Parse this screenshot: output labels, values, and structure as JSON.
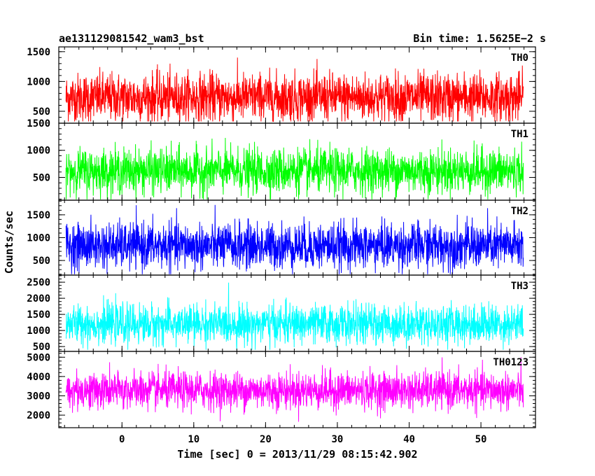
{
  "header": {
    "left_title": "ae131129081542_wam3_bst",
    "right_title": "Bin time: 1.5625E−2 s"
  },
  "chart_data": {
    "type": "line",
    "title": "ae131129081542_wam3_bst",
    "bin_time": "Bin time: 1.5625E−2 s",
    "xlabel": "Time [sec] 0 = 2013/11/29 08:15:42.902",
    "ylabel": "Counts/sec",
    "xlim": [
      -8.8,
      57.6
    ],
    "data_x_range": [
      -7.8,
      55.9
    ],
    "x_ticks": [
      0,
      10,
      20,
      30,
      40,
      50
    ],
    "x_tick_labels": [
      "0",
      "10",
      "20",
      "30",
      "40",
      "50"
    ],
    "grid": false,
    "panels": [
      {
        "name": "TH0",
        "color": "#ff0000",
        "ylim": [
          300,
          1580
        ],
        "y_ticks": [
          500,
          1000,
          1500
        ],
        "y_tick_labels": [
          "500",
          "1000",
          "1500"
        ],
        "mean": 730,
        "sigma": 205,
        "min": 330,
        "max": 1580
      },
      {
        "name": "TH1",
        "color": "#00ff00",
        "ylim": [
          80,
          1500
        ],
        "y_ticks": [
          500,
          1000,
          1500
        ],
        "y_tick_labels": [
          "500",
          "1000",
          "1500"
        ],
        "mean": 620,
        "sigma": 205,
        "min": 95,
        "max": 1500
      },
      {
        "name": "TH2",
        "color": "#0000ff",
        "ylim": [
          180,
          1820
        ],
        "y_ticks": [
          500,
          1000,
          1500
        ],
        "y_tick_labels": [
          "500",
          "1000",
          "1500"
        ],
        "mean": 820,
        "sigma": 250,
        "min": 200,
        "max": 1820
      },
      {
        "name": "TH3",
        "color": "#00ffff",
        "ylim": [
          350,
          2720
        ],
        "y_ticks": [
          500,
          1000,
          1500,
          2000,
          2500
        ],
        "y_tick_labels": [
          "500",
          "1000",
          "1500",
          "2000",
          "2500"
        ],
        "mean": 1200,
        "sigma": 300,
        "min": 400,
        "max": 2720
      },
      {
        "name": "TH0123",
        "color": "#ff00ff",
        "ylim": [
          1350,
          5300
        ],
        "y_ticks": [
          2000,
          3000,
          4000,
          5000
        ],
        "y_tick_labels": [
          "2000",
          "3000",
          "4000",
          "5000"
        ],
        "mean": 3280,
        "sigma": 480,
        "min": 1400,
        "max": 5250
      }
    ]
  }
}
